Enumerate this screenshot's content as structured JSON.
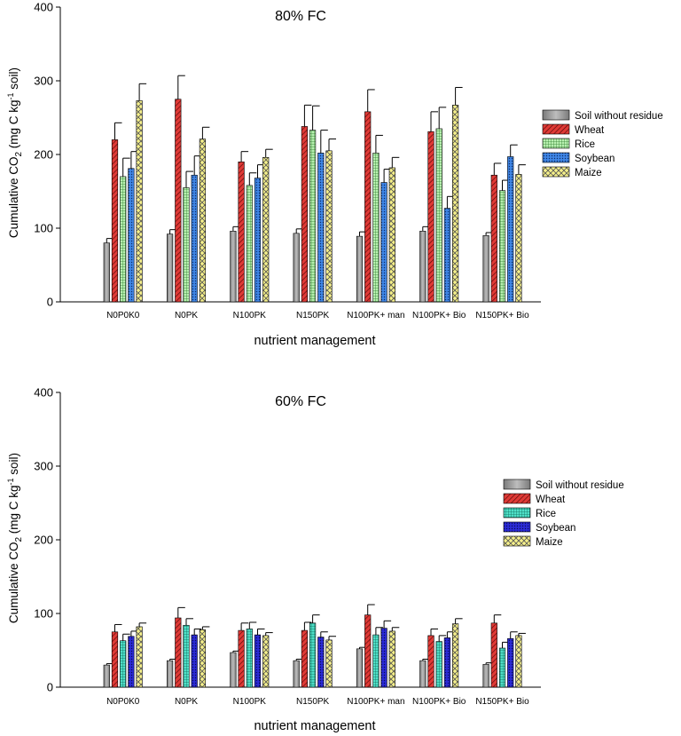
{
  "chart_data": [
    {
      "type": "bar",
      "title": "80% FC",
      "xlabel": "nutrient management",
      "ylabel": "Cumulative CO2 (mg C kg-1 soil)",
      "ylabel_main": "Cumulative CO",
      "ylabel_sub": "2",
      "ylabel_mid": " (mg C kg",
      "ylabel_sup": "-1",
      "ylabel_end": " soil)",
      "ylim": [
        0,
        400
      ],
      "yticks": [
        "0",
        "100",
        "200",
        "300",
        "400"
      ],
      "categories": [
        "N0P0K0",
        "N0PK",
        "N100PK",
        "N150PK",
        "N100PK+ man",
        "N100PK+ Bio",
        "N150PK+ Bio"
      ],
      "series": [
        {
          "name": "Soil without residue",
          "values": [
            80,
            92,
            96,
            93,
            89,
            96,
            90
          ],
          "errors": [
            6,
            6,
            6,
            6,
            6,
            6,
            4
          ]
        },
        {
          "name": "Wheat",
          "values": [
            220,
            275,
            190,
            238,
            258,
            231,
            172
          ],
          "errors": [
            23,
            32,
            14,
            29,
            30,
            27,
            16
          ]
        },
        {
          "name": "Rice",
          "values": [
            170,
            155,
            158,
            233,
            202,
            235,
            151
          ],
          "errors": [
            25,
            22,
            17,
            33,
            24,
            29,
            14
          ]
        },
        {
          "name": "Soybean",
          "values": [
            181,
            172,
            168,
            202,
            162,
            127,
            197
          ],
          "errors": [
            23,
            26,
            18,
            31,
            18,
            16,
            16
          ]
        },
        {
          "name": "Maize",
          "values": [
            273,
            221,
            196,
            205,
            182,
            267,
            173
          ],
          "errors": [
            23,
            16,
            11,
            16,
            14,
            24,
            13
          ]
        }
      ]
    },
    {
      "type": "bar",
      "title": "60% FC",
      "xlabel": "nutrient management",
      "ylabel": "Cumulative CO2 (mg C kg-1 soil)",
      "ylabel_main": "Cumulative CO",
      "ylabel_sub": "2",
      "ylabel_mid": " (mg C kg",
      "ylabel_sup": "-1",
      "ylabel_end": " soil)",
      "ylim": [
        0,
        400
      ],
      "yticks": [
        "0",
        "100",
        "200",
        "300",
        "400"
      ],
      "categories": [
        "N0P0K0",
        "N0PK",
        "N100PK",
        "N150PK",
        "N100PK+ man",
        "N100PK+ Bio",
        "N150PK+ Bio"
      ],
      "series": [
        {
          "name": "Soil without residue",
          "values": [
            30,
            36,
            47,
            36,
            52,
            36,
            31
          ],
          "errors": [
            2,
            2,
            2,
            2,
            2,
            2,
            2
          ]
        },
        {
          "name": "Wheat",
          "values": [
            75,
            94,
            77,
            77,
            98,
            70,
            87
          ],
          "errors": [
            10,
            14,
            10,
            11,
            14,
            9,
            11
          ]
        },
        {
          "name": "Rice",
          "values": [
            63,
            84,
            79,
            87,
            71,
            62,
            53
          ],
          "errors": [
            9,
            9,
            9,
            11,
            10,
            8,
            8
          ]
        },
        {
          "name": "Soybean",
          "values": [
            69,
            71,
            71,
            68,
            80,
            67,
            66
          ],
          "errors": [
            7,
            8,
            8,
            7,
            10,
            8,
            9
          ]
        },
        {
          "name": "Maize",
          "values": [
            82,
            78,
            70,
            64,
            76,
            86,
            70
          ],
          "errors": [
            5,
            4,
            4,
            5,
            5,
            7,
            3
          ]
        }
      ]
    }
  ]
}
